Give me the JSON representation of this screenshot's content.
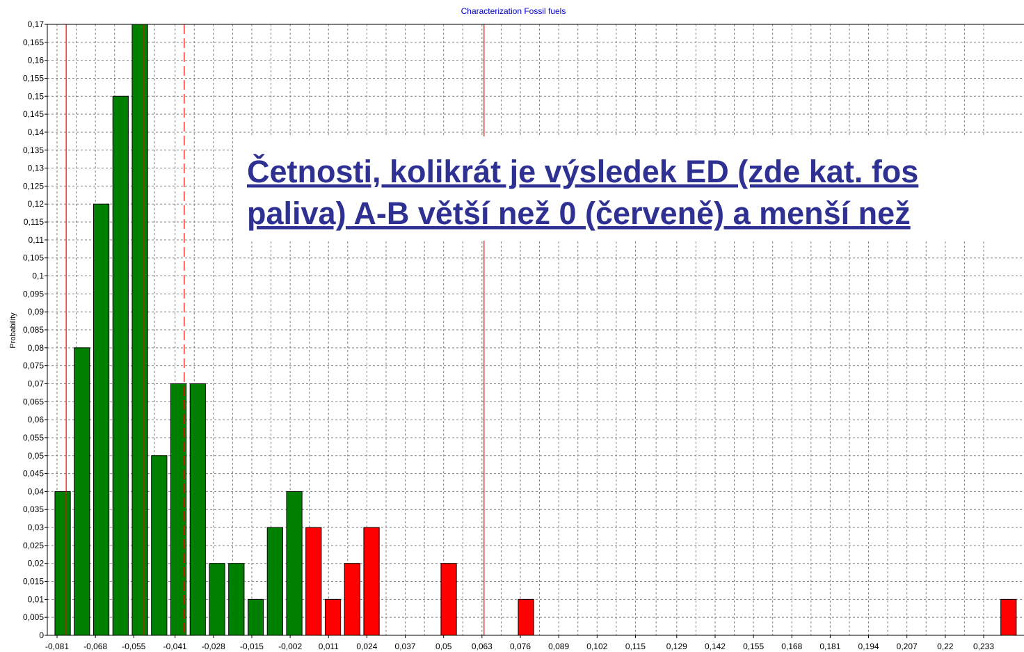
{
  "chart_data": {
    "type": "histogram",
    "title": "Characterization Fossil fuels",
    "ylabel": "Probability",
    "annotation": [
      "Četnosti, kolikrát je výsledek ED (zde kat. fos",
      "paliva) A-B větší než 0 (červeně) a menší než"
    ],
    "bins": [
      -0.08237,
      -0.07583,
      -0.06929,
      -0.06274,
      -0.0562,
      -0.04966,
      -0.04312,
      -0.03658,
      -0.03004,
      -0.0235,
      -0.01695,
      -0.01041,
      -0.00387,
      0.00267,
      0.00921,
      0.01575,
      0.0223,
      0.02884,
      0.03538,
      0.04192,
      0.04846,
      0.055,
      0.06155,
      0.06809,
      0.07463,
      0.08117,
      0.08771,
      0.09425,
      0.1008,
      0.10734,
      0.11388,
      0.12042,
      0.12696,
      0.1335,
      0.14005,
      0.14659,
      0.15313,
      0.15967,
      0.16621,
      0.17275,
      0.1793,
      0.18584,
      0.19238,
      0.19892,
      0.20546,
      0.212,
      0.21855,
      0.22509,
      0.23163,
      0.23817,
      0.24471
    ],
    "values": [
      0.04,
      0.08,
      0.12,
      0.15,
      0.17,
      0.05,
      0.07,
      0.07,
      0.02,
      0.02,
      0.01,
      0.03,
      0.04,
      0.03,
      0.01,
      0.02,
      0.03,
      0,
      0,
      0,
      0.02,
      0,
      0,
      0,
      0.01,
      0,
      0,
      0,
      0,
      0,
      0,
      0,
      0,
      0,
      0,
      0,
      0,
      0,
      0,
      0,
      0,
      0,
      0,
      0,
      0,
      0,
      0,
      0,
      0,
      0.01
    ],
    "colors": [
      "#008000",
      "#008000",
      "#008000",
      "#008000",
      "#008000",
      "#008000",
      "#008000",
      "#008000",
      "#008000",
      "#008000",
      "#008000",
      "#008000",
      "#008000",
      "#ff0000",
      "#ff0000",
      "#ff0000",
      "#ff0000",
      "#ff0000",
      "#ff0000",
      "#ff0000",
      "#ff0000",
      "#ff0000",
      "#ff0000",
      "#ff0000",
      "#ff0000",
      "#ff0000",
      "#ff0000",
      "#ff0000",
      "#ff0000",
      "#ff0000",
      "#ff0000",
      "#ff0000",
      "#ff0000",
      "#ff0000",
      "#ff0000",
      "#ff0000",
      "#ff0000",
      "#ff0000",
      "#ff0000",
      "#ff0000",
      "#ff0000",
      "#ff0000",
      "#ff0000",
      "#ff0000",
      "#ff0000",
      "#ff0000",
      "#ff0000",
      "#ff0000",
      "#ff0000",
      "#ff0000"
    ],
    "reference_lines": [
      {
        "x": -0.0779,
        "style": "solid",
        "color": "#ff0000"
      },
      {
        "x": -0.0515,
        "style": "solid",
        "color": "#ff0000"
      },
      {
        "x": -0.0379,
        "style": "dashed",
        "color": "#ff0000"
      },
      {
        "x": 0.0637,
        "style": "solid",
        "color": "#ff0000"
      }
    ],
    "xlim": [
      -0.0843,
      0.2467
    ],
    "ylim": [
      0,
      0.17
    ],
    "grid": true,
    "xticks": [
      {
        "value": -0.081,
        "label": "-0,081"
      },
      {
        "value": -0.068,
        "label": "-0,068"
      },
      {
        "value": -0.055,
        "label": "-0,055"
      },
      {
        "value": -0.041,
        "label": "-0,041"
      },
      {
        "value": -0.028,
        "label": "-0,028"
      },
      {
        "value": -0.015,
        "label": "-0,015"
      },
      {
        "value": -0.002,
        "label": "-0,002"
      },
      {
        "value": 0.011,
        "label": "0,011"
      },
      {
        "value": 0.024,
        "label": "0,024"
      },
      {
        "value": 0.037,
        "label": "0,037"
      },
      {
        "value": 0.05,
        "label": "0,05"
      },
      {
        "value": 0.063,
        "label": "0,063"
      },
      {
        "value": 0.076,
        "label": "0,076"
      },
      {
        "value": 0.089,
        "label": "0,089"
      },
      {
        "value": 0.102,
        "label": "0,102"
      },
      {
        "value": 0.115,
        "label": "0,115"
      },
      {
        "value": 0.129,
        "label": "0,129"
      },
      {
        "value": 0.142,
        "label": "0,142"
      },
      {
        "value": 0.155,
        "label": "0,155"
      },
      {
        "value": 0.168,
        "label": "0,168"
      },
      {
        "value": 0.181,
        "label": "0,181"
      },
      {
        "value": 0.194,
        "label": "0,194"
      },
      {
        "value": 0.207,
        "label": "0,207"
      },
      {
        "value": 0.22,
        "label": "0,22"
      },
      {
        "value": 0.233,
        "label": "0,233"
      }
    ],
    "yticks": [
      0,
      {
        "value": 0.005,
        "label": "0,005"
      },
      {
        "value": 0.01,
        "label": "0,01"
      },
      {
        "value": 0.015,
        "label": "0,015"
      },
      {
        "value": 0.02,
        "label": "0,02"
      },
      {
        "value": 0.025,
        "label": "0,025"
      },
      {
        "value": 0.03,
        "label": "0,03"
      },
      {
        "value": 0.035,
        "label": "0,035"
      },
      {
        "value": 0.04,
        "label": "0,04"
      },
      {
        "value": 0.045,
        "label": "0,045"
      },
      {
        "value": 0.05,
        "label": "0,05"
      },
      {
        "value": 0.055,
        "label": "0,055"
      },
      {
        "value": 0.06,
        "label": "0,06"
      },
      {
        "value": 0.065,
        "label": "0,065"
      },
      {
        "value": 0.07,
        "label": "0,07"
      },
      {
        "value": 0.075,
        "label": "0,075"
      },
      {
        "value": 0.08,
        "label": "0,08"
      },
      {
        "value": 0.085,
        "label": "0,085"
      },
      {
        "value": 0.09,
        "label": "0,09"
      },
      {
        "value": 0.095,
        "label": "0,095"
      },
      {
        "value": 0.1,
        "label": "0,1"
      },
      {
        "value": 0.105,
        "label": "0,105"
      },
      {
        "value": 0.11,
        "label": "0,11"
      },
      {
        "value": 0.115,
        "label": "0,115"
      },
      {
        "value": 0.12,
        "label": "0,12"
      },
      {
        "value": 0.125,
        "label": "0,125"
      },
      {
        "value": 0.13,
        "label": "0,13"
      },
      {
        "value": 0.135,
        "label": "0,135"
      },
      {
        "value": 0.14,
        "label": "0,14"
      },
      {
        "value": 0.145,
        "label": "0,145"
      },
      {
        "value": 0.15,
        "label": "0,15"
      },
      {
        "value": 0.155,
        "label": "0,155"
      },
      {
        "value": 0.16,
        "label": "0,16"
      },
      {
        "value": 0.165,
        "label": "0,165"
      },
      {
        "value": 0.17,
        "label": "0,17"
      }
    ]
  }
}
